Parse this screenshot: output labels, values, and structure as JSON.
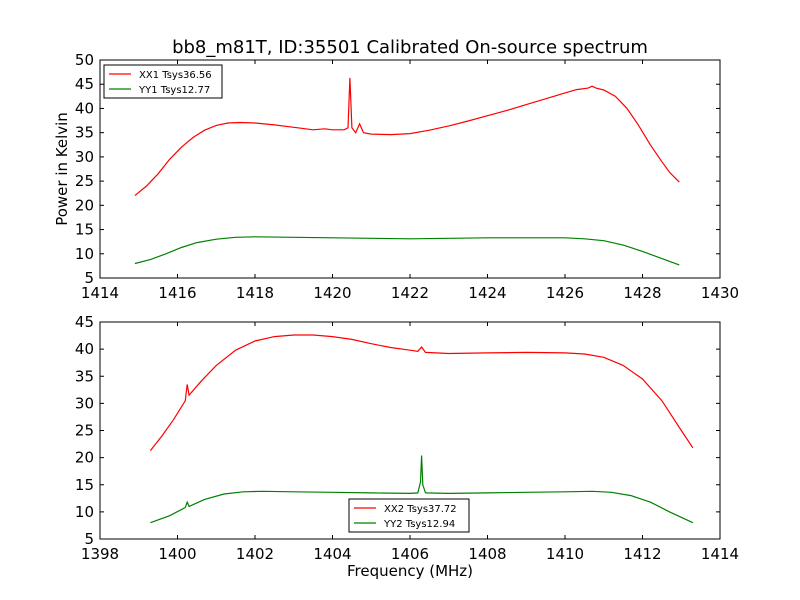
{
  "figure_title": "bb8_m81T, ID:35501 Calibrated On-source spectrum",
  "ylabel_shared": "Power in Kelvin",
  "xlabel_shared": "Frequency (MHz)",
  "colors": {
    "xx": "#ff0000",
    "yy": "#008000"
  },
  "chart_data": [
    {
      "type": "line",
      "xlim": [
        1414,
        1430
      ],
      "ylim": [
        5,
        50
      ],
      "xticks": [
        1414,
        1416,
        1418,
        1420,
        1422,
        1424,
        1426,
        1428,
        1430
      ],
      "yticks": [
        5,
        10,
        15,
        20,
        25,
        30,
        35,
        40,
        45,
        50
      ],
      "legend_position": "top-left",
      "series": [
        {
          "name": "XX1 Tsys36.56",
          "color": "#ff0000",
          "points": [
            [
              1414.9,
              22.0
            ],
            [
              1415.2,
              24.0
            ],
            [
              1415.5,
              26.5
            ],
            [
              1415.8,
              29.5
            ],
            [
              1416.1,
              32.0
            ],
            [
              1416.4,
              34.0
            ],
            [
              1416.7,
              35.5
            ],
            [
              1417.0,
              36.5
            ],
            [
              1417.3,
              37.0
            ],
            [
              1417.6,
              37.1
            ],
            [
              1418.0,
              37.0
            ],
            [
              1418.5,
              36.6
            ],
            [
              1419.0,
              36.1
            ],
            [
              1419.5,
              35.6
            ],
            [
              1419.8,
              35.8
            ],
            [
              1420.0,
              35.6
            ],
            [
              1420.3,
              35.6
            ],
            [
              1420.4,
              36.0
            ],
            [
              1420.45,
              46.3
            ],
            [
              1420.5,
              36.0
            ],
            [
              1420.6,
              35.0
            ],
            [
              1420.7,
              36.8
            ],
            [
              1420.8,
              35.0
            ],
            [
              1421.0,
              34.7
            ],
            [
              1421.5,
              34.6
            ],
            [
              1422.0,
              34.8
            ],
            [
              1422.5,
              35.5
            ],
            [
              1423.0,
              36.4
            ],
            [
              1423.5,
              37.4
            ],
            [
              1424.0,
              38.5
            ],
            [
              1424.5,
              39.6
            ],
            [
              1425.0,
              40.8
            ],
            [
              1425.5,
              42.0
            ],
            [
              1426.0,
              43.2
            ],
            [
              1426.3,
              43.9
            ],
            [
              1426.6,
              44.2
            ],
            [
              1426.7,
              44.6
            ],
            [
              1426.8,
              44.2
            ],
            [
              1427.0,
              43.8
            ],
            [
              1427.3,
              42.5
            ],
            [
              1427.6,
              40.0
            ],
            [
              1427.9,
              36.5
            ],
            [
              1428.2,
              32.5
            ],
            [
              1428.5,
              29.0
            ],
            [
              1428.7,
              26.8
            ],
            [
              1428.95,
              24.8
            ]
          ]
        },
        {
          "name": "YY1 Tsys12.77",
          "color": "#008000",
          "points": [
            [
              1414.9,
              8.0
            ],
            [
              1415.3,
              8.8
            ],
            [
              1415.7,
              10.0
            ],
            [
              1416.1,
              11.3
            ],
            [
              1416.5,
              12.3
            ],
            [
              1417.0,
              13.0
            ],
            [
              1417.5,
              13.4
            ],
            [
              1418.0,
              13.5
            ],
            [
              1419.0,
              13.4
            ],
            [
              1420.0,
              13.3
            ],
            [
              1421.0,
              13.2
            ],
            [
              1422.0,
              13.1
            ],
            [
              1423.0,
              13.2
            ],
            [
              1424.0,
              13.3
            ],
            [
              1425.0,
              13.3
            ],
            [
              1426.0,
              13.3
            ],
            [
              1426.5,
              13.1
            ],
            [
              1427.0,
              12.7
            ],
            [
              1427.5,
              11.8
            ],
            [
              1428.0,
              10.5
            ],
            [
              1428.5,
              9.0
            ],
            [
              1428.95,
              7.7
            ]
          ]
        }
      ]
    },
    {
      "type": "line",
      "xlim": [
        1398,
        1414
      ],
      "ylim": [
        5,
        45
      ],
      "xticks": [
        1398,
        1400,
        1402,
        1404,
        1406,
        1408,
        1410,
        1412,
        1414
      ],
      "yticks": [
        5,
        10,
        15,
        20,
        25,
        30,
        35,
        40,
        45
      ],
      "legend_position": "lower-center",
      "series": [
        {
          "name": "XX2 Tsys37.72",
          "color": "#ff0000",
          "points": [
            [
              1399.3,
              21.3
            ],
            [
              1399.6,
              24.0
            ],
            [
              1399.9,
              27.0
            ],
            [
              1400.2,
              30.5
            ],
            [
              1400.25,
              33.5
            ],
            [
              1400.3,
              31.5
            ],
            [
              1400.6,
              34.0
            ],
            [
              1401.0,
              37.0
            ],
            [
              1401.5,
              39.8
            ],
            [
              1402.0,
              41.5
            ],
            [
              1402.5,
              42.3
            ],
            [
              1403.0,
              42.6
            ],
            [
              1403.5,
              42.6
            ],
            [
              1404.0,
              42.3
            ],
            [
              1404.5,
              41.8
            ],
            [
              1405.0,
              41.0
            ],
            [
              1405.5,
              40.3
            ],
            [
              1406.0,
              39.8
            ],
            [
              1406.2,
              39.6
            ],
            [
              1406.3,
              40.4
            ],
            [
              1406.4,
              39.4
            ],
            [
              1407.0,
              39.2
            ],
            [
              1408.0,
              39.3
            ],
            [
              1409.0,
              39.4
            ],
            [
              1410.0,
              39.3
            ],
            [
              1410.5,
              39.1
            ],
            [
              1411.0,
              38.5
            ],
            [
              1411.5,
              37.0
            ],
            [
              1412.0,
              34.5
            ],
            [
              1412.5,
              30.5
            ],
            [
              1413.0,
              25.0
            ],
            [
              1413.3,
              21.8
            ]
          ]
        },
        {
          "name": "YY2 Tsys12.94",
          "color": "#008000",
          "points": [
            [
              1399.3,
              8.0
            ],
            [
              1399.8,
              9.3
            ],
            [
              1400.2,
              10.8
            ],
            [
              1400.25,
              11.8
            ],
            [
              1400.3,
              11.0
            ],
            [
              1400.7,
              12.3
            ],
            [
              1401.2,
              13.3
            ],
            [
              1401.7,
              13.7
            ],
            [
              1402.2,
              13.8
            ],
            [
              1403.0,
              13.7
            ],
            [
              1404.0,
              13.6
            ],
            [
              1405.0,
              13.5
            ],
            [
              1406.0,
              13.4
            ],
            [
              1406.2,
              13.5
            ],
            [
              1406.27,
              15.5
            ],
            [
              1406.3,
              20.4
            ],
            [
              1406.33,
              15.0
            ],
            [
              1406.4,
              13.5
            ],
            [
              1407.0,
              13.4
            ],
            [
              1408.0,
              13.5
            ],
            [
              1409.0,
              13.6
            ],
            [
              1410.0,
              13.7
            ],
            [
              1410.7,
              13.8
            ],
            [
              1411.2,
              13.6
            ],
            [
              1411.7,
              13.0
            ],
            [
              1412.2,
              11.8
            ],
            [
              1412.7,
              10.0
            ],
            [
              1413.3,
              8.0
            ]
          ]
        }
      ]
    }
  ]
}
